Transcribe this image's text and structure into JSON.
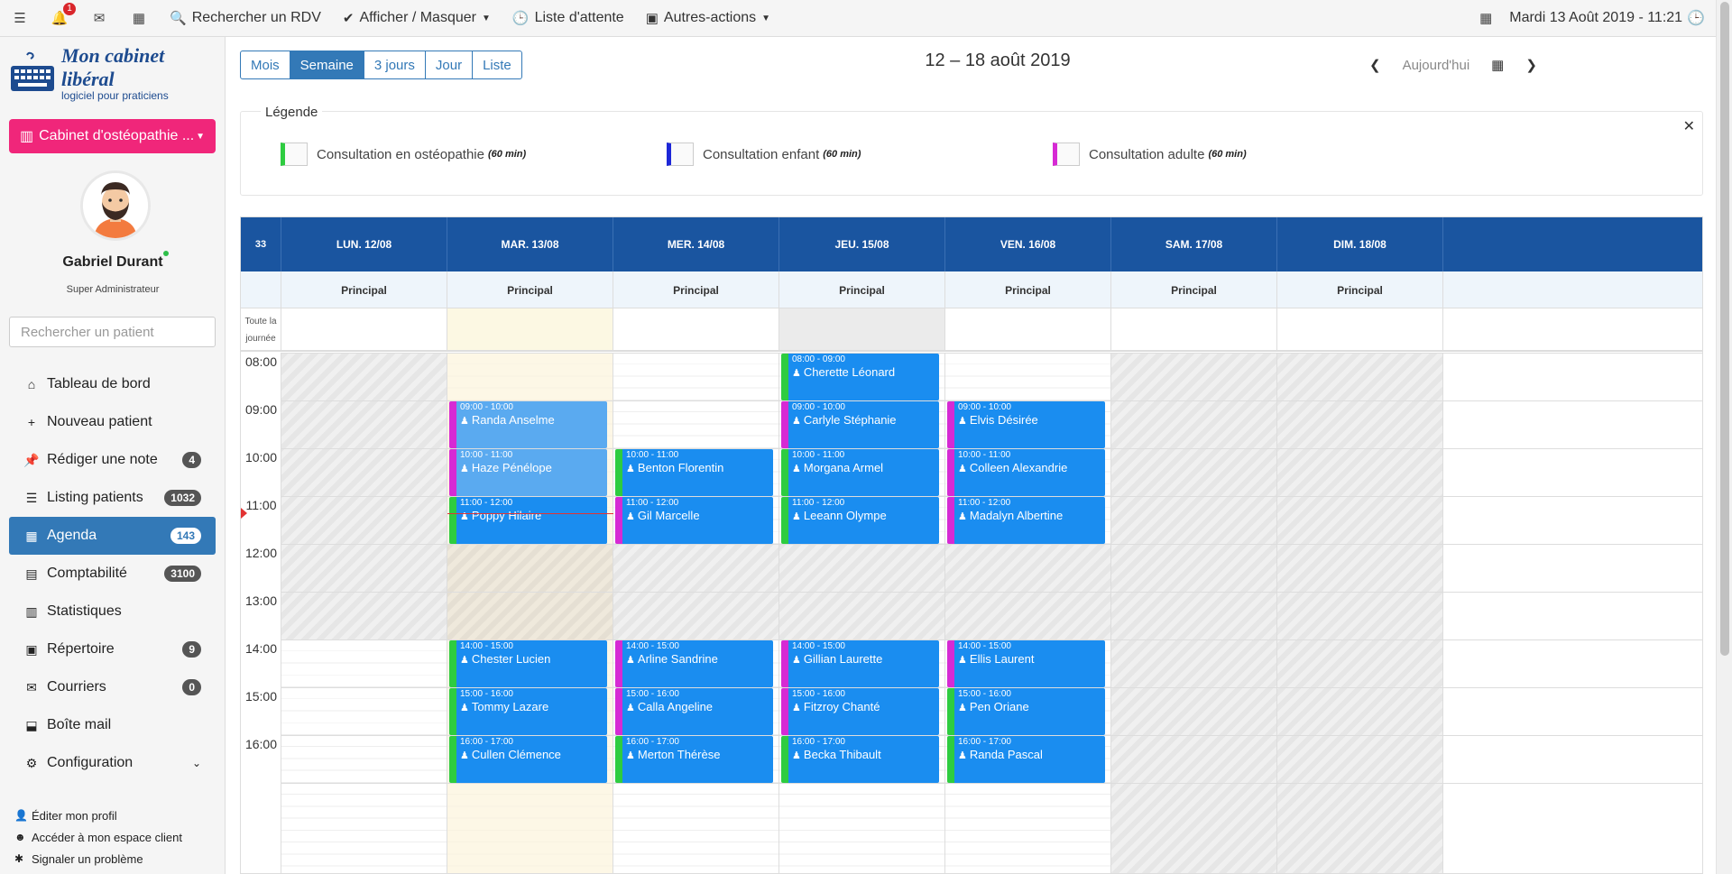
{
  "topbar": {
    "notifications_count": "1",
    "search_rdv": "Rechercher un RDV",
    "show_hide": "Afficher / Masquer",
    "waitlist": "Liste d'attente",
    "other_actions": "Autres-actions",
    "datetime": "Mardi 13 Août 2019 - 11:21"
  },
  "sidebar": {
    "logo_title": "Mon cabinet libéral",
    "logo_sub": "logiciel pour praticiens",
    "cabinet": "Cabinet d'ostéopathie ...",
    "user_name": "Gabriel Durant",
    "user_role": "Super Administrateur",
    "search_placeholder": "Rechercher un patient",
    "nav": [
      {
        "label": "Tableau de bord",
        "icon": "home-icon",
        "count": ""
      },
      {
        "label": "Nouveau patient",
        "icon": "plus-icon",
        "count": ""
      },
      {
        "label": "Rédiger une note",
        "icon": "pin-icon",
        "count": "4"
      },
      {
        "label": "Listing patients",
        "icon": "list-icon",
        "count": "1032"
      },
      {
        "label": "Agenda",
        "icon": "calendar-icon",
        "count": "143"
      },
      {
        "label": "Comptabilité",
        "icon": "calculator-icon",
        "count": "3100"
      },
      {
        "label": "Statistiques",
        "icon": "chart-icon",
        "count": ""
      },
      {
        "label": "Répertoire",
        "icon": "contacts-icon",
        "count": "9"
      },
      {
        "label": "Courriers",
        "icon": "envelope-icon",
        "count": "0"
      },
      {
        "label": "Boîte mail",
        "icon": "inbox-icon",
        "count": ""
      },
      {
        "label": "Configuration",
        "icon": "gear-icon",
        "count": ""
      }
    ],
    "footer": [
      {
        "label": "Éditer mon profil",
        "icon": "user-icon"
      },
      {
        "label": "Accéder à mon espace client",
        "icon": "user-circle-icon"
      },
      {
        "label": "Signaler un problème",
        "icon": "bug-icon"
      }
    ]
  },
  "calendar": {
    "views": [
      "Mois",
      "Semaine",
      "3 jours",
      "Jour",
      "Liste"
    ],
    "active_view": "Semaine",
    "range_title": "12 – 18 août 2019",
    "today_label": "Aujourd'hui",
    "legend_title": "Légende",
    "legend": [
      {
        "label": "Consultation en ostéopathie",
        "duration": "(60 min)",
        "color": "#2ecc40"
      },
      {
        "label": "Consultation enfant",
        "duration": "(60 min)",
        "color": "#1d27d8"
      },
      {
        "label": "Consultation adulte",
        "duration": "(60 min)",
        "color": "#d62ad4"
      }
    ],
    "week_number": "33",
    "days": [
      "LUN. 12/08",
      "MAR. 13/08",
      "MER. 14/08",
      "JEU. 15/08",
      "VEN. 16/08",
      "SAM. 17/08",
      "DIM. 18/08"
    ],
    "resource": "Principal",
    "allday_label": "Toute la journée",
    "hours": [
      "08:00",
      "09:00",
      "10:00",
      "11:00",
      "12:00",
      "13:00",
      "14:00",
      "15:00",
      "16:00"
    ],
    "events": [
      {
        "day": 1,
        "start": 9,
        "time": "09:00 - 10:00",
        "name": "Randa Anselme",
        "type": "adulte",
        "past": true
      },
      {
        "day": 1,
        "start": 10,
        "time": "10:00 - 11:00",
        "name": "Haze Pénélope",
        "type": "adulte",
        "past": true
      },
      {
        "day": 1,
        "start": 11,
        "time": "11:00 - 12:00",
        "name": "Poppy Hilaire",
        "type": "osteo",
        "past": false
      },
      {
        "day": 1,
        "start": 14,
        "time": "14:00 - 15:00",
        "name": "Chester Lucien",
        "type": "osteo",
        "past": false
      },
      {
        "day": 1,
        "start": 15,
        "time": "15:00 - 16:00",
        "name": "Tommy Lazare",
        "type": "osteo",
        "past": false
      },
      {
        "day": 1,
        "start": 16,
        "time": "16:00 - 17:00",
        "name": "Cullen Clémence",
        "type": "osteo",
        "past": false
      },
      {
        "day": 2,
        "start": 10,
        "time": "10:00 - 11:00",
        "name": "Benton Florentin",
        "type": "osteo",
        "past": false
      },
      {
        "day": 2,
        "start": 11,
        "time": "11:00 - 12:00",
        "name": "Gil Marcelle",
        "type": "adulte",
        "past": false
      },
      {
        "day": 2,
        "start": 14,
        "time": "14:00 - 15:00",
        "name": "Arline Sandrine",
        "type": "adulte",
        "past": false
      },
      {
        "day": 2,
        "start": 15,
        "time": "15:00 - 16:00",
        "name": "Calla Angeline",
        "type": "adulte",
        "past": false
      },
      {
        "day": 2,
        "start": 16,
        "time": "16:00 - 17:00",
        "name": "Merton Thérèse",
        "type": "osteo",
        "past": false
      },
      {
        "day": 3,
        "start": 8,
        "time": "08:00 - 09:00",
        "name": "Cherette Léonard",
        "type": "osteo",
        "past": false
      },
      {
        "day": 3,
        "start": 9,
        "time": "09:00 - 10:00",
        "name": "Carlyle Stéphanie",
        "type": "adulte",
        "past": false
      },
      {
        "day": 3,
        "start": 10,
        "time": "10:00 - 11:00",
        "name": "Morgana Armel",
        "type": "osteo",
        "past": false
      },
      {
        "day": 3,
        "start": 11,
        "time": "11:00 - 12:00",
        "name": "Leeann Olympe",
        "type": "osteo",
        "past": false
      },
      {
        "day": 3,
        "start": 14,
        "time": "14:00 - 15:00",
        "name": "Gillian Laurette",
        "type": "adulte",
        "past": false
      },
      {
        "day": 3,
        "start": 15,
        "time": "15:00 - 16:00",
        "name": "Fitzroy Chanté",
        "type": "adulte",
        "past": false
      },
      {
        "day": 3,
        "start": 16,
        "time": "16:00 - 17:00",
        "name": "Becka Thibault",
        "type": "osteo",
        "past": false
      },
      {
        "day": 4,
        "start": 9,
        "time": "09:00 - 10:00",
        "name": "Elvis Désirée",
        "type": "adulte",
        "past": false
      },
      {
        "day": 4,
        "start": 10,
        "time": "10:00 - 11:00",
        "name": "Colleen Alexandrie",
        "type": "adulte",
        "past": false
      },
      {
        "day": 4,
        "start": 11,
        "time": "11:00 - 12:00",
        "name": "Madalyn Albertine",
        "type": "adulte",
        "past": false
      },
      {
        "day": 4,
        "start": 14,
        "time": "14:00 - 15:00",
        "name": "Ellis Laurent",
        "type": "adulte",
        "past": false
      },
      {
        "day": 4,
        "start": 15,
        "time": "15:00 - 16:00",
        "name": "Pen Oriane",
        "type": "osteo",
        "past": false
      },
      {
        "day": 4,
        "start": 16,
        "time": "16:00 - 17:00",
        "name": "Randa Pascal",
        "type": "osteo",
        "past": false
      }
    ]
  }
}
